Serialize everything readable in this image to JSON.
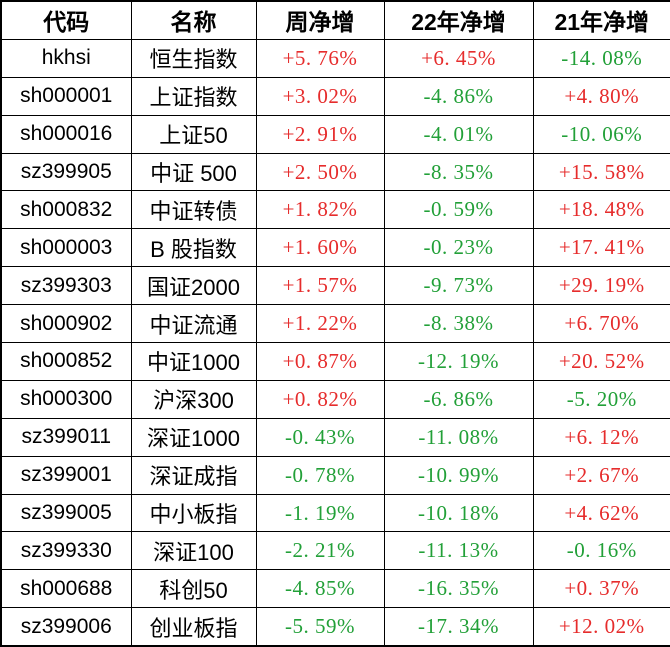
{
  "table": {
    "columns": [
      {
        "key": "code",
        "label": "代码"
      },
      {
        "key": "name",
        "label": "名称"
      },
      {
        "key": "week",
        "label": "周净增"
      },
      {
        "key": "y2022",
        "label": "22年净增"
      },
      {
        "key": "y2021",
        "label": "21年净增"
      }
    ],
    "rows": [
      {
        "code": "hkhsi",
        "name": "恒生指数",
        "week": "+5. 76%",
        "y2022": "+6. 45%",
        "y2021": "-14. 08%"
      },
      {
        "code": "sh000001",
        "name": "上证指数",
        "week": "+3. 02%",
        "y2022": "-4. 86%",
        "y2021": "+4. 80%"
      },
      {
        "code": "sh000016",
        "name": "上证50",
        "week": "+2. 91%",
        "y2022": "-4. 01%",
        "y2021": "-10. 06%"
      },
      {
        "code": "sz399905",
        "name": "中证 500",
        "week": "+2. 50%",
        "y2022": "-8. 35%",
        "y2021": "+15. 58%"
      },
      {
        "code": "sh000832",
        "name": "中证转债",
        "week": "+1. 82%",
        "y2022": "-0. 59%",
        "y2021": "+18. 48%"
      },
      {
        "code": "sh000003",
        "name": "B 股指数",
        "week": "+1. 60%",
        "y2022": "-0. 23%",
        "y2021": "+17. 41%"
      },
      {
        "code": "sz399303",
        "name": "国证2000",
        "week": "+1. 57%",
        "y2022": "-9. 73%",
        "y2021": "+29. 19%"
      },
      {
        "code": "sh000902",
        "name": "中证流通",
        "week": "+1. 22%",
        "y2022": "-8. 38%",
        "y2021": "+6. 70%"
      },
      {
        "code": "sh000852",
        "name": "中证1000",
        "week": "+0. 87%",
        "y2022": "-12. 19%",
        "y2021": "+20. 52%"
      },
      {
        "code": "sh000300",
        "name": "沪深300",
        "week": "+0. 82%",
        "y2022": "-6. 86%",
        "y2021": "-5. 20%"
      },
      {
        "code": "sz399011",
        "name": "深证1000",
        "week": "-0. 43%",
        "y2022": "-11. 08%",
        "y2021": "+6. 12%"
      },
      {
        "code": "sz399001",
        "name": "深证成指",
        "week": "-0. 78%",
        "y2022": "-10. 99%",
        "y2021": "+2. 67%"
      },
      {
        "code": "sz399005",
        "name": "中小板指",
        "week": "-1. 19%",
        "y2022": "-10. 18%",
        "y2021": "+4. 62%"
      },
      {
        "code": "sz399330",
        "name": "深证100",
        "week": "-2. 21%",
        "y2022": "-11. 13%",
        "y2021": "-0. 16%"
      },
      {
        "code": "sh000688",
        "name": "科创50",
        "week": "-4. 85%",
        "y2022": "-16. 35%",
        "y2021": "+0. 37%"
      },
      {
        "code": "sz399006",
        "name": "创业板指",
        "week": "-5. 59%",
        "y2022": "-17. 34%",
        "y2021": "+12. 02%"
      }
    ],
    "colors": {
      "up": "#e62c2c",
      "down": "#22a038",
      "border": "#000000",
      "text": "#000000",
      "background": "#ffffff"
    }
  },
  "chart_data": {
    "type": "table",
    "title": "",
    "columns": [
      "代码",
      "名称",
      "周净增",
      "22年净增",
      "21年净增"
    ],
    "units": "%",
    "rows": [
      {
        "code": "hkhsi",
        "name": "恒生指数",
        "week": 5.76,
        "y2022": 6.45,
        "y2021": -14.08
      },
      {
        "code": "sh000001",
        "name": "上证指数",
        "week": 3.02,
        "y2022": -4.86,
        "y2021": 4.8
      },
      {
        "code": "sh000016",
        "name": "上证50",
        "week": 2.91,
        "y2022": -4.01,
        "y2021": -10.06
      },
      {
        "code": "sz399905",
        "name": "中证 500",
        "week": 2.5,
        "y2022": -8.35,
        "y2021": 15.58
      },
      {
        "code": "sh000832",
        "name": "中证转债",
        "week": 1.82,
        "y2022": -0.59,
        "y2021": 18.48
      },
      {
        "code": "sh000003",
        "name": "B 股指数",
        "week": 1.6,
        "y2022": -0.23,
        "y2021": 17.41
      },
      {
        "code": "sz399303",
        "name": "国证2000",
        "week": 1.57,
        "y2022": -9.73,
        "y2021": 29.19
      },
      {
        "code": "sh000902",
        "name": "中证流通",
        "week": 1.22,
        "y2022": -8.38,
        "y2021": 6.7
      },
      {
        "code": "sh000852",
        "name": "中证1000",
        "week": 0.87,
        "y2022": -12.19,
        "y2021": 20.52
      },
      {
        "code": "sh000300",
        "name": "沪深300",
        "week": 0.82,
        "y2022": -6.86,
        "y2021": -5.2
      },
      {
        "code": "sz399011",
        "name": "深证1000",
        "week": -0.43,
        "y2022": -11.08,
        "y2021": 6.12
      },
      {
        "code": "sz399001",
        "name": "深证成指",
        "week": -0.78,
        "y2022": -10.99,
        "y2021": 2.67
      },
      {
        "code": "sz399005",
        "name": "中小板指",
        "week": -1.19,
        "y2022": -10.18,
        "y2021": 4.62
      },
      {
        "code": "sz399330",
        "name": "深证100",
        "week": -2.21,
        "y2022": -11.13,
        "y2021": -0.16
      },
      {
        "code": "sh000688",
        "name": "科创50",
        "week": -4.85,
        "y2022": -16.35,
        "y2021": 0.37
      },
      {
        "code": "sz399006",
        "name": "创业板指",
        "week": -5.59,
        "y2022": -17.34,
        "y2021": 12.02
      }
    ],
    "color_semantics": {
      "positive": "red #e62c2c (up)",
      "negative": "green #22a038 (down)"
    },
    "grid": true,
    "legend": "none"
  }
}
